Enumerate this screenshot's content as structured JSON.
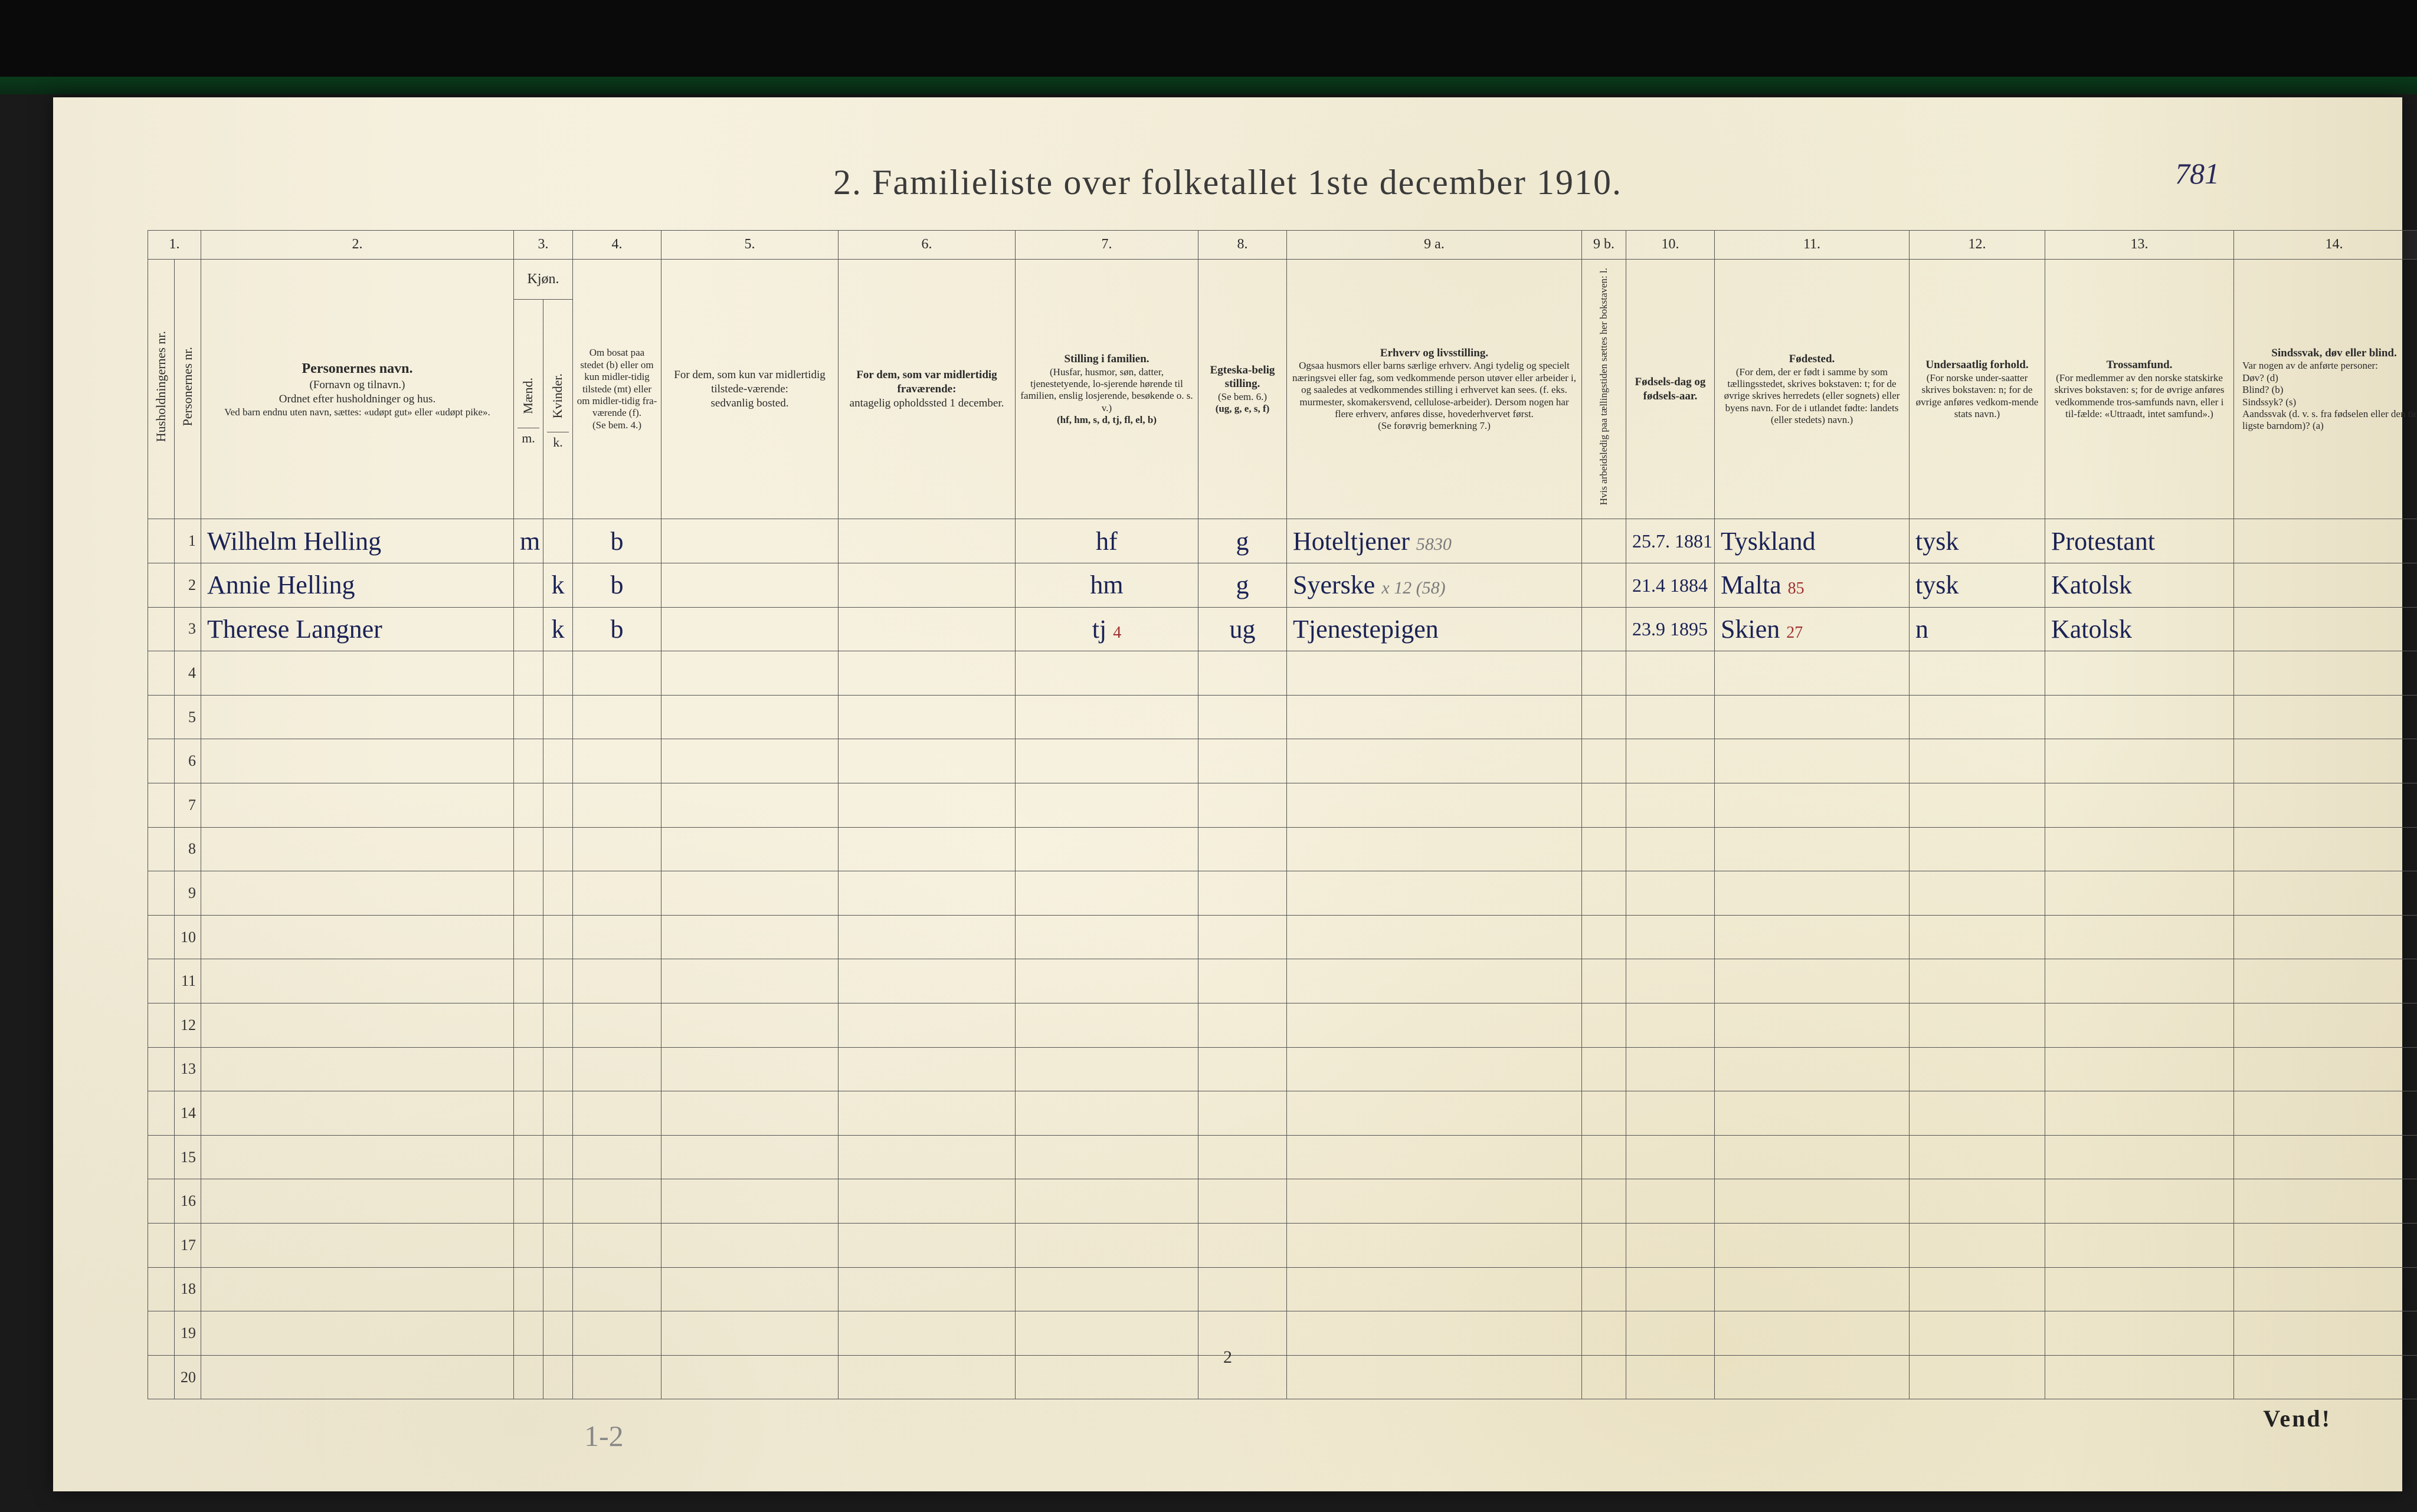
{
  "document": {
    "title": "2.  Familieliste over folketallet 1ste december 1910.",
    "page_number_handwritten_top": "781",
    "bottom_page_number": "2",
    "vend_label": "Vend!",
    "pencil_note_bottom": "1-2"
  },
  "columns": {
    "top_numbers": [
      "1.",
      "2.",
      "3.",
      "4.",
      "5.",
      "6.",
      "7.",
      "8.",
      "9 a.",
      "9 b.",
      "10.",
      "11.",
      "12.",
      "13.",
      "14."
    ],
    "c1a": "Husholdningernes nr.",
    "c1b": "Personernes nr.",
    "c2_title": "Personernes navn.",
    "c2_sub1": "(Fornavn og tilnavn.)",
    "c2_sub2": "Ordnet efter husholdninger og hus.",
    "c2_sub3": "Ved barn endnu uten navn, sættes: «udøpt gut» eller «udøpt pike».",
    "c3_title": "Kjøn.",
    "c3_m": "Mænd.",
    "c3_k": "Kvinder.",
    "c3_mk_m": "m.",
    "c3_mk_k": "k.",
    "c4_title": "Om bosat paa stedet (b) eller om kun midler-tidig tilstede (mt) eller om midler-tidig fra-værende (f).",
    "c4_sub": "(Se bem. 4.)",
    "c5_title": "For dem, som kun var midlertidig tilstede-værende:",
    "c5_sub": "sedvanlig bosted.",
    "c6_title": "For dem, som var midlertidig fraværende:",
    "c6_sub": "antagelig opholdssted 1 december.",
    "c7_title": "Stilling i familien.",
    "c7_sub1": "(Husfar, husmor, søn, datter, tjenestetyende, lo-sjerende hørende til familien, enslig losjerende, besøkende o. s. v.)",
    "c7_sub2": "(hf, hm, s, d, tj, fl, el, b)",
    "c8_title": "Egteska-belig stilling.",
    "c8_sub1": "(Se bem. 6.)",
    "c8_sub2": "(ug, g, e, s, f)",
    "c9a_title": "Erhverv og livsstilling.",
    "c9a_sub": "Ogsaa husmors eller barns særlige erhverv. Angi tydelig og specielt næringsvei eller fag, som vedkommende person utøver eller arbeider i, og saaledes at vedkommendes stilling i erhvervet kan sees. (f. eks. murmester, skomakersvend, cellulose-arbeider). Dersom nogen har flere erhverv, anføres disse, hovederhvervet først.",
    "c9a_sub2": "(Se forøvrig bemerkning 7.)",
    "c9b": "Hvis arbeidsledig paa tællingstiden sættes her bokstaven: l.",
    "c10_title": "Fødsels-dag og fødsels-aar.",
    "c11_title": "Fødested.",
    "c11_sub": "(For dem, der er født i samme by som tællingsstedet, skrives bokstaven: t; for de øvrige skrives herredets (eller sognets) eller byens navn. For de i utlandet fødte: landets (eller stedets) navn.)",
    "c12_title": "Undersaatlig forhold.",
    "c12_sub": "(For norske under-saatter skrives bokstaven: n; for de øvrige anføres vedkom-mende stats navn.)",
    "c13_title": "Trossamfund.",
    "c13_sub": "(For medlemmer av den norske statskirke skrives bokstaven: s; for de øvrige anføres vedkommende tros-samfunds navn, eller i til-fælde: «Uttraadt, intet samfund».)",
    "c14_title": "Sindssvak, døv eller blind.",
    "c14_sub": "Var nogen av de anførte personer:\nDøv?     (d)\nBlind?   (b)\nSindssyk? (s)\nAandssvak (d. v. s. fra fødselen eller den tid-ligste barndom)? (a)"
  },
  "rows": [
    {
      "num": "1",
      "name": "Wilhelm Helling",
      "sex_m": "m",
      "sex_k": "",
      "residence": "b",
      "c5": "",
      "c6": "",
      "family_pos": "hf",
      "marital": "g",
      "occupation": "Hoteltjener",
      "occupation_note": "5830",
      "c9b": "",
      "birth": "25.7. 1881",
      "birthplace": "Tyskland",
      "nationality": "tysk",
      "religion": "Protestant",
      "c14": ""
    },
    {
      "num": "2",
      "name": "Annie Helling",
      "sex_m": "",
      "sex_k": "k",
      "residence": "b",
      "c5": "",
      "c6": "",
      "family_pos": "hm",
      "marital": "g",
      "occupation": "Syerske",
      "occupation_note": "x 12 (58)",
      "c9b": "",
      "birth": "21.4 1884",
      "birthplace": "Malta",
      "birthplace_note": "85",
      "nationality": "tysk",
      "religion": "Katolsk",
      "c14": ""
    },
    {
      "num": "3",
      "name": "Therese Langner",
      "sex_m": "",
      "sex_k": "k",
      "residence": "b",
      "c5": "",
      "c6": "",
      "family_pos": "tj",
      "family_pos_note": "4",
      "marital": "ug",
      "occupation": "Tjenestepigen",
      "occupation_note": "",
      "c9b": "",
      "birth": "23.9 1895",
      "birthplace": "Skien",
      "birthplace_note": "27",
      "nationality": "n",
      "religion": "Katolsk",
      "c14": ""
    }
  ],
  "empty_row_numbers": [
    "4",
    "5",
    "6",
    "7",
    "8",
    "9",
    "10",
    "11",
    "12",
    "13",
    "14",
    "15",
    "16",
    "17",
    "18",
    "19",
    "20"
  ]
}
